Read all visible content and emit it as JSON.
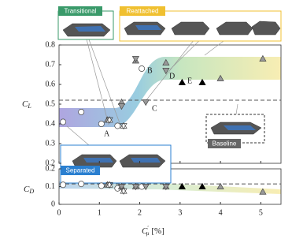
{
  "chart_data": {
    "type": "scatter",
    "ylabel": [
      "C",
      "L"
    ],
    "y2label": [
      "C",
      "D"
    ],
    "xlabel": [
      "C",
      "′",
      "μ",
      "[%]"
    ],
    "xlim": [
      0,
      5.5
    ],
    "xticks": [
      0,
      1,
      2,
      3,
      4,
      5
    ],
    "ylim": [
      0.2,
      0.8
    ],
    "yticks": [
      0.2,
      0.3,
      0.4,
      0.5,
      0.6,
      0.7,
      0.8
    ],
    "y2lim": [
      0,
      0.2
    ],
    "y2ticks": [
      0,
      0.1,
      0.2
    ],
    "reference_lines": [
      0.52,
      0.115
    ],
    "annotations": [
      "A",
      "B",
      "C",
      "D",
      "E"
    ],
    "insets": [
      "Transitional",
      "Reattached",
      "Separated",
      "Baseline"
    ],
    "inset_colors": [
      "#3a9a6a",
      "#f0c030",
      "#2a7fd0",
      "#666666"
    ],
    "points": [
      {
        "shape": "circle",
        "color": "#ffffff",
        "x": [
          0.1,
          0.55,
          1.05,
          1.45,
          2.05
        ],
        "y": [
          0.41,
          0.46,
          0.4,
          0.39,
          0.68
        ],
        "cd": [
          0.11,
          0.115,
          0.105,
          0.09,
          0.1
        ]
      },
      {
        "shape": "up",
        "color": "#999999",
        "x": [
          1.2,
          1.55,
          1.9,
          2.65,
          4.0,
          5.05
        ],
        "y": [
          0.42,
          0.51,
          0.72,
          0.71,
          0.63,
          0.73
        ],
        "cd": [
          0.11,
          0.1,
          0.1,
          0.1,
          0.1,
          0.07
        ]
      },
      {
        "shape": "down",
        "color": "#999999",
        "x": [
          1.55,
          1.9,
          2.15,
          2.65
        ],
        "y": [
          0.49,
          0.73,
          0.51,
          0.67
        ],
        "cd": [
          0.1,
          0.1,
          0.1,
          0.1
        ]
      },
      {
        "shape": "up",
        "color": "#000000",
        "x": [
          3.05,
          3.55
        ],
        "y": [
          0.61,
          0.61
        ],
        "cd": [
          0.1,
          0.1
        ]
      },
      {
        "shape": "star",
        "color": "#ffffff",
        "x": [
          1.25,
          1.6
        ],
        "y": [
          0.42,
          0.39
        ],
        "cd": [
          0.11,
          0.075
        ]
      }
    ]
  }
}
